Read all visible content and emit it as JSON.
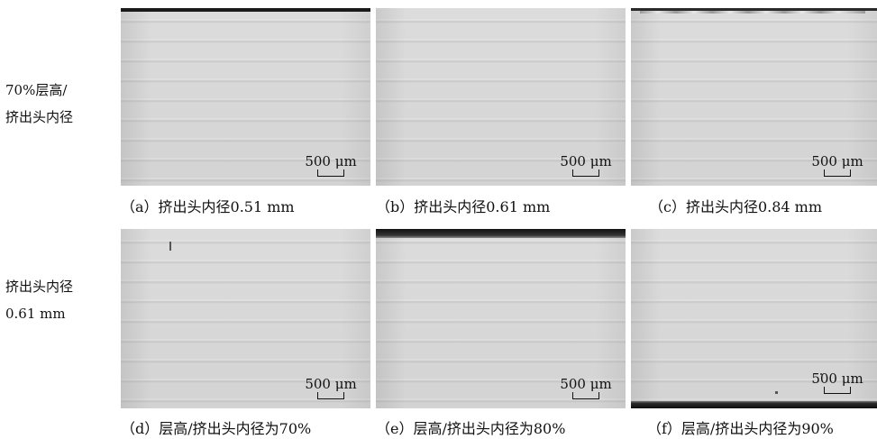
{
  "row_labels": [
    {
      "line1": "70%层高/",
      "line2": "挤出头内径"
    },
    {
      "line1": "挤出头内径",
      "line2": "0.61 mm"
    }
  ],
  "panels": [
    {
      "caption": "（a）挤出头内径0.51 mm",
      "scale_label": "500 μm"
    },
    {
      "caption": "（b）挤出头内径0.61 mm",
      "scale_label": "500 μm"
    },
    {
      "caption": "（c）挤出头内径0.84 mm",
      "scale_label": "500 μm"
    },
    {
      "caption": "（d）层高/挤出头内径为70%",
      "scale_label": "500 μm"
    },
    {
      "caption": "（e）层高/挤出头内径为80%",
      "scale_label": "500 μm"
    },
    {
      "caption": "（f）层高/挤出头内径为90%",
      "scale_label": "500 μm"
    }
  ]
}
